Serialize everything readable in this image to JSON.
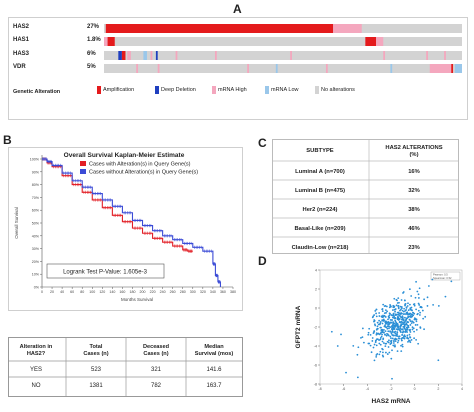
{
  "panels": {
    "a": "A",
    "b": "B",
    "c": "C",
    "d": "D"
  },
  "oncoprint": {
    "genes": [
      {
        "name": "HAS2",
        "pct": "27%"
      },
      {
        "name": "HAS1",
        "pct": "1.8%"
      },
      {
        "name": "HAS3",
        "pct": "6%"
      },
      {
        "name": "VDR",
        "pct": "5%"
      }
    ],
    "legend_title": "Genetic Alteration",
    "legend": [
      {
        "label": "Amplification",
        "color": "#e41a1c"
      },
      {
        "label": "Deep Deletion",
        "color": "#1f3fbf"
      },
      {
        "label": "mRNA High",
        "color": "#f4a7be"
      },
      {
        "label": "mRNA Low",
        "color": "#9ac7ea"
      },
      {
        "label": "No alterations",
        "color": "#d3d3d3"
      }
    ],
    "colors": {
      "amp": "#e41a1c",
      "del": "#1f3fbf",
      "high": "#f4a7be",
      "low": "#9ac7ea",
      "none": "#d3d3d3"
    }
  },
  "km": {
    "title": "Overall Survival Kaplan-Meier Estimate",
    "legend": [
      {
        "label": "Cases with Alteration(s) in Query Gene(s)",
        "color": "#e21f26"
      },
      {
        "label": "Cases without Alteration(s) in Query Gene(s)",
        "color": "#3b4bd6"
      }
    ],
    "ylabel": "Overall Survival",
    "xlabel": "Months Survival",
    "logrank": "Logrank Test P-Value: 1.605e-3"
  },
  "chart_data": [
    {
      "type": "line",
      "title": "Overall Survival Kaplan-Meier Estimate",
      "xlabel": "Months Survival",
      "ylabel": "Overall Survival",
      "xlim": [
        0,
        380
      ],
      "ylim": [
        0,
        100
      ],
      "x_ticks": [
        "0",
        "20",
        "40",
        "60",
        "80",
        "100",
        "120",
        "140",
        "160",
        "180",
        "200",
        "220",
        "240",
        "260",
        "280",
        "300",
        "320",
        "340",
        "360",
        "380"
      ],
      "y_ticks": [
        "0%",
        "10%",
        "20%",
        "30%",
        "40%",
        "50%",
        "60%",
        "70%",
        "80%",
        "90%",
        "100%"
      ],
      "series": [
        {
          "name": "Cases with Alteration(s) in Query Gene(s)",
          "x": [
            0,
            10,
            20,
            40,
            60,
            80,
            100,
            120,
            140,
            160,
            180,
            200,
            220,
            240,
            260,
            280,
            290,
            300
          ],
          "y": [
            100,
            97,
            94,
            87,
            80,
            74,
            68,
            62,
            56,
            51,
            46,
            42,
            38,
            35,
            32,
            29,
            28,
            28
          ]
        },
        {
          "name": "Cases without Alteration(s) in Query Gene(s)",
          "x": [
            0,
            10,
            20,
            40,
            60,
            80,
            100,
            120,
            140,
            160,
            180,
            200,
            220,
            240,
            260,
            280,
            300,
            320,
            340,
            345,
            350,
            355
          ],
          "y": [
            100,
            98,
            95,
            89,
            83,
            78,
            73,
            68,
            63,
            58,
            52,
            48,
            44,
            40,
            37,
            34,
            31,
            28,
            18,
            9,
            4,
            0
          ]
        }
      ]
    },
    {
      "type": "scatter",
      "xlabel": "HAS2 mRNA",
      "ylabel": "GFPT2 mRNA",
      "xlim": [
        -8,
        4
      ],
      "ylim": [
        -8,
        4
      ],
      "x_ticks": [
        "-8",
        "-6",
        "-4",
        "-2",
        "0",
        "2",
        "4"
      ],
      "y_ticks": [
        "-8",
        "-6",
        "-4",
        "-2",
        "0",
        "2",
        "4"
      ],
      "legend": [
        "Pearson: 0.5",
        "Spearman: 0.52"
      ]
    }
  ],
  "survival_table": {
    "headers": [
      "Alteration in HAS2?",
      "Total Cases (n)",
      "Deceased Cases (n)",
      "Median Survival (mos)"
    ],
    "rows": [
      [
        "YES",
        "523",
        "321",
        "141.6"
      ],
      [
        "NO",
        "1381",
        "782",
        "163.7"
      ]
    ]
  },
  "subtype_table": {
    "headers": [
      "SUBTYPE",
      "HAS2 ALTERATIONS (%)"
    ],
    "rows": [
      [
        "Luminal A (n=700)",
        "16%"
      ],
      [
        "Luminal B (n=475)",
        "32%"
      ],
      [
        "Her2 (n=224)",
        "38%"
      ],
      [
        "Basal-Like (n=209)",
        "46%"
      ],
      [
        "Claudin-Low (n=218)",
        "23%"
      ]
    ]
  },
  "scatter": {
    "xlabel": "HAS2 mRNA",
    "ylabel": "GFPT2 mRNA",
    "color": "#2a8fd6"
  }
}
